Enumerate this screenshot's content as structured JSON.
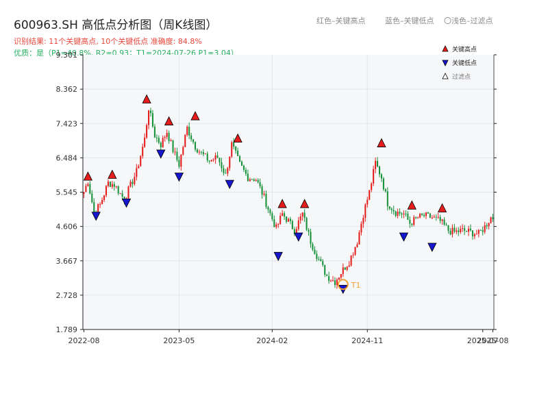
{
  "header": {
    "title": "600963.SH 高低点分析图（周K线图）",
    "result_line": "识别结果: 11个关键高点, 10个关键低点  准确度: 84.8%",
    "quality_line": "优质：是（P1=40.8%, R2=0.93；T1=2024-07-26 P1=3.04）"
  },
  "top_legend": {
    "red": "红色–关键高点",
    "blue": "蓝色–关键低点",
    "light": "〇浅色–过滤点"
  },
  "chart_data": {
    "type": "candlestick",
    "title": "600963.SH 高低点分析图（周K线图）",
    "y_ticks": [
      "1.789",
      "2.728",
      "3.667",
      "4.606",
      "5.545",
      "6.484",
      "7.423",
      "8.362",
      "9.301"
    ],
    "ylim": [
      1.789,
      9.301
    ],
    "x_ticks": [
      "2022-08",
      "2023-05",
      "2024-02",
      "2024-11",
      "2025-07",
      "2025-08"
    ],
    "grid": true,
    "legend_position": "top-right",
    "legend": [
      {
        "label": "关键高点",
        "color": "#e51c1c",
        "marker": "triangle-up"
      },
      {
        "label": "关键低点",
        "color": "#1616cc",
        "marker": "triangle-down"
      },
      {
        "label": "过滤点",
        "color": "#ffffff",
        "marker": "triangle-up-outline"
      }
    ],
    "colors": {
      "up": "#e51c1c",
      "down": "#18923a",
      "high_marker": "#e51c1c",
      "low_marker": "#1616cc",
      "t1": "#f0a030"
    },
    "anchors": [
      [
        0,
        5.55
      ],
      [
        2,
        5.85
      ],
      [
        5,
        5.0
      ],
      [
        8,
        5.2
      ],
      [
        12,
        5.8
      ],
      [
        15,
        5.75
      ],
      [
        18,
        5.5
      ],
      [
        20,
        5.35
      ],
      [
        26,
        6.1
      ],
      [
        30,
        7.0
      ],
      [
        32,
        7.85
      ],
      [
        35,
        7.1
      ],
      [
        38,
        6.85
      ],
      [
        41,
        7.2
      ],
      [
        44,
        6.7
      ],
      [
        47,
        6.3
      ],
      [
        51,
        7.3
      ],
      [
        55,
        6.8
      ],
      [
        58,
        6.6
      ],
      [
        62,
        6.4
      ],
      [
        66,
        6.5
      ],
      [
        70,
        6.0
      ],
      [
        73,
        6.85
      ],
      [
        77,
        6.3
      ],
      [
        81,
        5.95
      ],
      [
        85,
        5.9
      ],
      [
        89,
        5.4
      ],
      [
        92,
        4.95
      ],
      [
        95,
        4.55
      ],
      [
        98,
        4.95
      ],
      [
        101,
        4.75
      ],
      [
        104,
        4.5
      ],
      [
        108,
        4.95
      ],
      [
        112,
        4.2
      ],
      [
        116,
        3.7
      ],
      [
        120,
        3.25
      ],
      [
        124,
        3.1
      ],
      [
        127,
        3.35
      ],
      [
        131,
        3.65
      ],
      [
        135,
        4.2
      ],
      [
        138,
        4.95
      ],
      [
        141,
        5.55
      ],
      [
        144,
        6.35
      ],
      [
        147,
        5.95
      ],
      [
        150,
        5.25
      ],
      [
        154,
        5.0
      ],
      [
        158,
        4.95
      ],
      [
        161,
        4.7
      ],
      [
        165,
        4.85
      ],
      [
        168,
        4.9
      ],
      [
        172,
        4.85
      ],
      [
        176,
        4.75
      ],
      [
        180,
        4.5
      ],
      [
        183,
        4.45
      ],
      [
        187,
        4.5
      ],
      [
        191,
        4.45
      ],
      [
        195,
        4.4
      ],
      [
        198,
        4.6
      ],
      [
        201,
        4.85
      ],
      [
        202,
        4.85
      ]
    ],
    "candles_count": 203,
    "key_highs": [
      {
        "i": 2,
        "price": 5.87
      },
      {
        "i": 14,
        "price": 5.92
      },
      {
        "i": 31,
        "price": 7.98
      },
      {
        "i": 42,
        "price": 7.38
      },
      {
        "i": 55,
        "price": 7.52
      },
      {
        "i": 76,
        "price": 6.91
      },
      {
        "i": 98,
        "price": 5.12
      },
      {
        "i": 109,
        "price": 5.12
      },
      {
        "i": 147,
        "price": 6.78
      },
      {
        "i": 162,
        "price": 5.08
      },
      {
        "i": 177,
        "price": 5.0
      }
    ],
    "key_lows": [
      {
        "i": 6,
        "price": 5.0
      },
      {
        "i": 21,
        "price": 5.36
      },
      {
        "i": 38,
        "price": 6.7
      },
      {
        "i": 47,
        "price": 6.07
      },
      {
        "i": 72,
        "price": 5.87
      },
      {
        "i": 96,
        "price": 3.9
      },
      {
        "i": 106,
        "price": 4.43
      },
      {
        "i": 128,
        "price": 3.0
      },
      {
        "i": 158,
        "price": 4.43
      },
      {
        "i": 172,
        "price": 4.15
      }
    ],
    "t1": {
      "i": 128,
      "price": 3.04,
      "label": "T1"
    }
  }
}
